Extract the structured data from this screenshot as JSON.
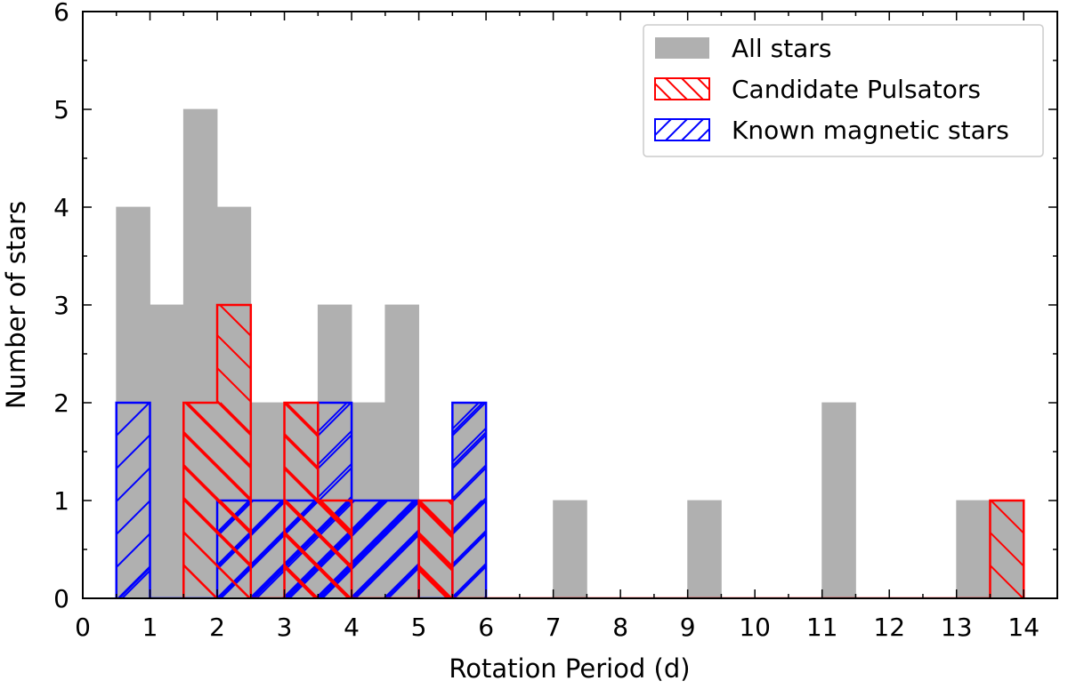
{
  "chart_data": {
    "type": "bar",
    "subtype": "histogram",
    "title": "",
    "xlabel": "Rotation Period (d)",
    "ylabel": "Number of stars",
    "xlim": [
      0,
      14.5
    ],
    "ylim": [
      0,
      6
    ],
    "bin_width": 0.5,
    "x_ticks": [
      0,
      1,
      2,
      3,
      4,
      5,
      6,
      7,
      8,
      9,
      10,
      11,
      12,
      13,
      14
    ],
    "y_ticks": [
      0,
      1,
      2,
      3,
      4,
      5,
      6
    ],
    "grid": false,
    "legend_position": "top-right",
    "series": [
      {
        "name": "All stars",
        "style": "filled",
        "color": "#b0b0b0",
        "bins": [
          {
            "start": 0.5,
            "end": 1.0,
            "count": 4
          },
          {
            "start": 1.0,
            "end": 1.5,
            "count": 3
          },
          {
            "start": 1.5,
            "end": 2.0,
            "count": 5
          },
          {
            "start": 2.0,
            "end": 2.5,
            "count": 4
          },
          {
            "start": 2.5,
            "end": 3.0,
            "count": 2
          },
          {
            "start": 3.0,
            "end": 3.5,
            "count": 2
          },
          {
            "start": 3.5,
            "end": 4.0,
            "count": 3
          },
          {
            "start": 4.0,
            "end": 4.5,
            "count": 2
          },
          {
            "start": 4.5,
            "end": 5.0,
            "count": 3
          },
          {
            "start": 5.0,
            "end": 5.5,
            "count": 1
          },
          {
            "start": 5.5,
            "end": 6.0,
            "count": 2
          },
          {
            "start": 7.0,
            "end": 7.5,
            "count": 1
          },
          {
            "start": 9.0,
            "end": 9.5,
            "count": 1
          },
          {
            "start": 11.0,
            "end": 11.5,
            "count": 2
          },
          {
            "start": 13.0,
            "end": 13.5,
            "count": 1
          },
          {
            "start": 13.5,
            "end": 14.0,
            "count": 1
          }
        ]
      },
      {
        "name": "Candidate Pulsators",
        "style": "hatch-backslash",
        "color": "#ff0000",
        "bins": [
          {
            "start": 1.5,
            "end": 2.0,
            "count": 2
          },
          {
            "start": 2.0,
            "end": 2.5,
            "count": 3
          },
          {
            "start": 2.5,
            "end": 3.0,
            "count": 0
          },
          {
            "start": 3.0,
            "end": 3.5,
            "count": 2
          },
          {
            "start": 3.5,
            "end": 4.0,
            "count": 1
          },
          {
            "start": 4.0,
            "end": 4.5,
            "count": 0
          },
          {
            "start": 4.5,
            "end": 5.0,
            "count": 0
          },
          {
            "start": 5.0,
            "end": 5.5,
            "count": 1
          },
          {
            "start": 13.5,
            "end": 14.0,
            "count": 1
          }
        ]
      },
      {
        "name": "Known magnetic stars",
        "style": "hatch-slash",
        "color": "#0000ff",
        "bins": [
          {
            "start": 0.5,
            "end": 1.0,
            "count": 2
          },
          {
            "start": 2.0,
            "end": 2.5,
            "count": 1
          },
          {
            "start": 2.5,
            "end": 3.0,
            "count": 1
          },
          {
            "start": 3.0,
            "end": 3.5,
            "count": 1
          },
          {
            "start": 3.5,
            "end": 4.0,
            "count": 2
          },
          {
            "start": 4.0,
            "end": 4.5,
            "count": 1
          },
          {
            "start": 4.5,
            "end": 5.0,
            "count": 1
          },
          {
            "start": 5.5,
            "end": 6.0,
            "count": 2
          }
        ]
      }
    ]
  }
}
